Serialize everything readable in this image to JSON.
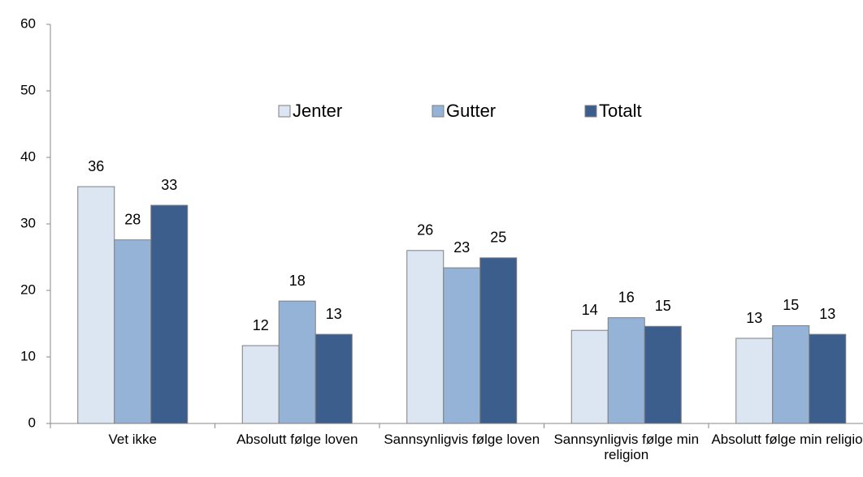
{
  "chart_data": {
    "type": "bar",
    "categories": [
      "Vet ikke",
      "Absolutt følge loven",
      "Sannsynligvis følge loven",
      "Sannsynligvis følge min religion",
      "Absolutt følge min religion"
    ],
    "series": [
      {
        "name": "Jenter",
        "color": "#dce6f2",
        "values": [
          35.6,
          11.7,
          26,
          14,
          12.8
        ],
        "value_labels": [
          "36",
          "12",
          "26",
          "14",
          "13"
        ]
      },
      {
        "name": "Gutter",
        "color": "#95b3d7",
        "values": [
          27.6,
          18.4,
          23.4,
          15.9,
          14.7
        ],
        "value_labels": [
          "28",
          "18",
          "23",
          "16",
          "15"
        ]
      },
      {
        "name": "Totalt",
        "color": "#3b5e8c",
        "values": [
          32.8,
          13.4,
          24.9,
          14.6,
          13.4
        ],
        "value_labels": [
          "33",
          "13",
          "25",
          "15",
          "13"
        ]
      }
    ],
    "ylim": [
      0,
      60
    ],
    "yticks": [
      0,
      10,
      20,
      30,
      40,
      50,
      60
    ],
    "legend": "top"
  }
}
